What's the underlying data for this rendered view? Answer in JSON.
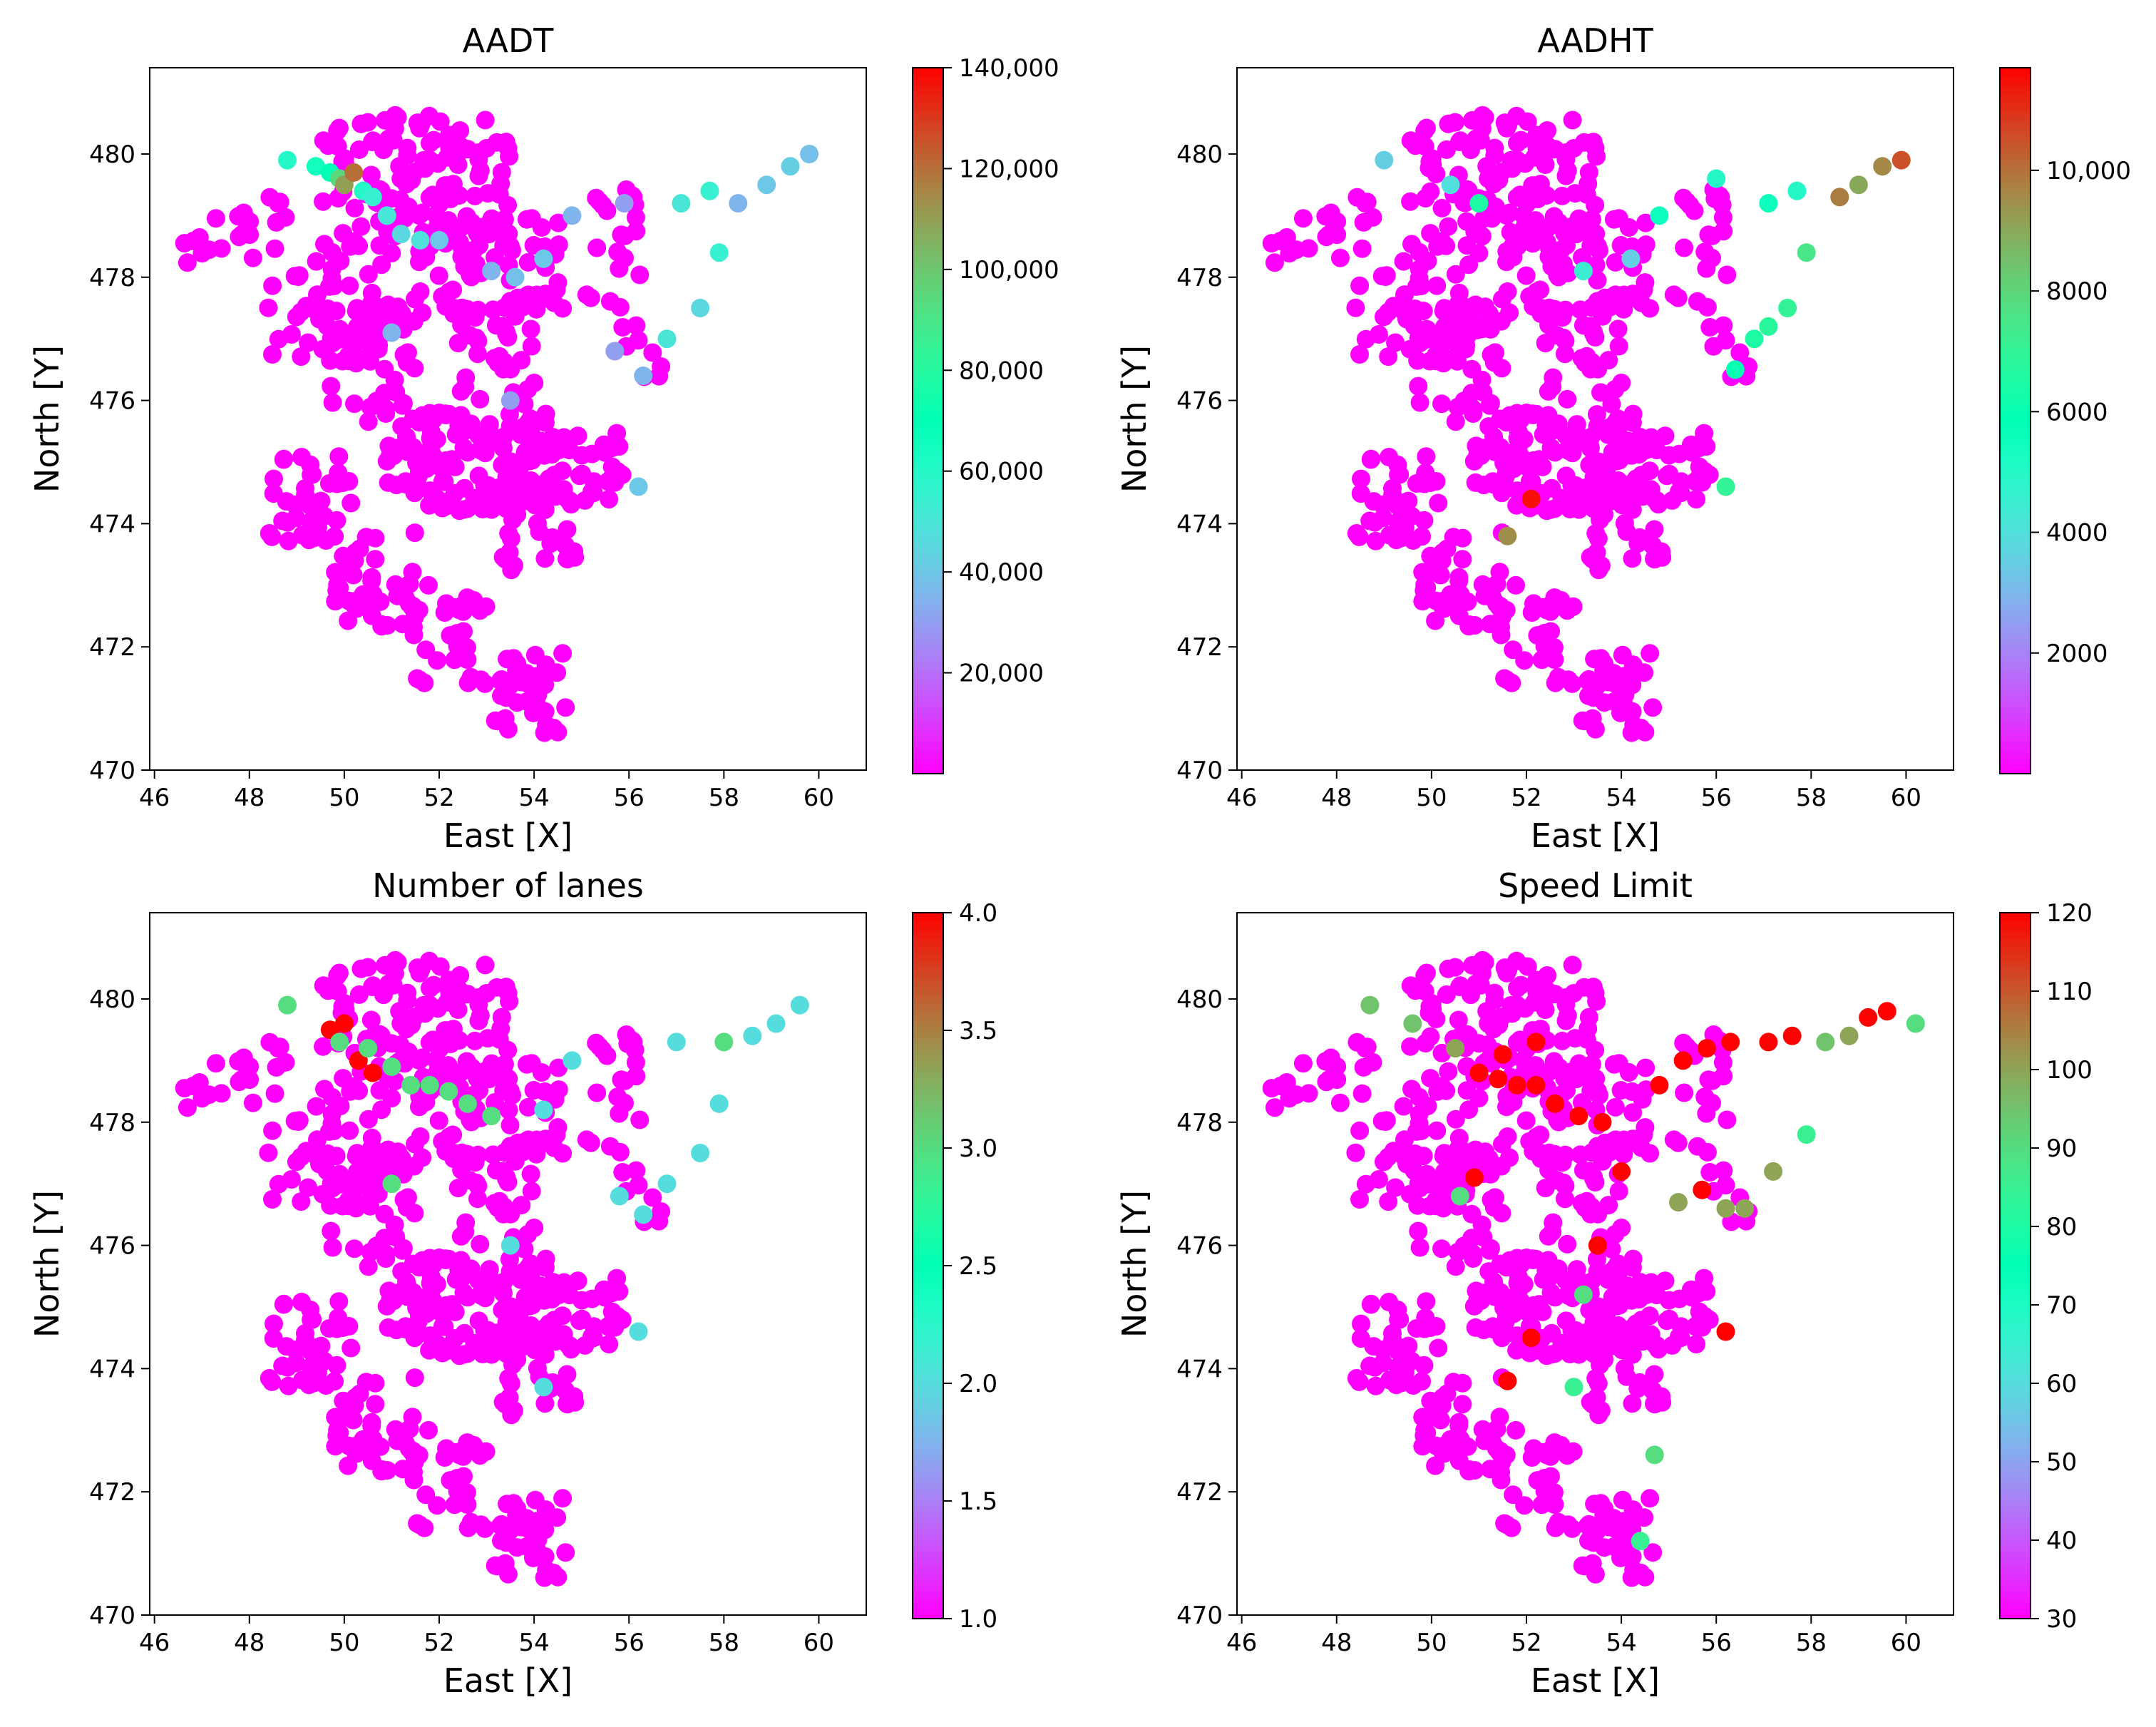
{
  "figure": {
    "note_colormap": "rainbow"
  },
  "chart_data": [
    {
      "type": "scatter",
      "title": "AADT",
      "xlabel": "East [X]",
      "ylabel": "North [Y]",
      "xlim": [
        45.9,
        61.0
      ],
      "ylim": [
        470.0,
        481.4
      ],
      "xticks": [
        46,
        48,
        50,
        52,
        54,
        56,
        58,
        60
      ],
      "yticks": [
        470,
        472,
        474,
        476,
        478,
        480
      ],
      "colorbar": {
        "label": "",
        "min": 0,
        "max": 140000,
        "ticks": [
          20000,
          40000,
          60000,
          80000,
          100000,
          120000,
          140000
        ],
        "tick_labels": [
          "20,000",
          "40,000",
          "60,000",
          "80,000",
          "100,000",
          "120,000",
          "140,000"
        ],
        "colormap": "rainbow"
      },
      "highlights": [
        {
          "x": 48.8,
          "y": 479.9,
          "value": 60000
        },
        {
          "x": 49.4,
          "y": 479.8,
          "value": 65000
        },
        {
          "x": 49.7,
          "y": 479.7,
          "value": 70000
        },
        {
          "x": 49.9,
          "y": 479.6,
          "value": 95000
        },
        {
          "x": 50.0,
          "y": 479.5,
          "value": 110000
        },
        {
          "x": 50.2,
          "y": 479.7,
          "value": 120000
        },
        {
          "x": 50.4,
          "y": 479.4,
          "value": 60000
        },
        {
          "x": 50.6,
          "y": 479.3,
          "value": 55000
        },
        {
          "x": 50.9,
          "y": 479.0,
          "value": 50000
        },
        {
          "x": 51.2,
          "y": 478.7,
          "value": 45000
        },
        {
          "x": 51.6,
          "y": 478.6,
          "value": 48000
        },
        {
          "x": 52.0,
          "y": 478.6,
          "value": 40000
        },
        {
          "x": 53.1,
          "y": 478.1,
          "value": 35000
        },
        {
          "x": 53.6,
          "y": 478.0,
          "value": 38000
        },
        {
          "x": 54.2,
          "y": 478.3,
          "value": 40000
        },
        {
          "x": 54.8,
          "y": 479.0,
          "value": 35000
        },
        {
          "x": 55.9,
          "y": 479.2,
          "value": 30000
        },
        {
          "x": 57.1,
          "y": 479.2,
          "value": 50000
        },
        {
          "x": 57.7,
          "y": 479.4,
          "value": 55000
        },
        {
          "x": 58.3,
          "y": 479.2,
          "value": 35000
        },
        {
          "x": 58.9,
          "y": 479.5,
          "value": 40000
        },
        {
          "x": 59.4,
          "y": 479.8,
          "value": 42000
        },
        {
          "x": 59.8,
          "y": 480.0,
          "value": 38000
        },
        {
          "x": 57.9,
          "y": 478.4,
          "value": 55000
        },
        {
          "x": 57.5,
          "y": 477.5,
          "value": 45000
        },
        {
          "x": 56.8,
          "y": 477.0,
          "value": 50000
        },
        {
          "x": 55.7,
          "y": 476.8,
          "value": 30000
        },
        {
          "x": 56.3,
          "y": 476.4,
          "value": 35000
        },
        {
          "x": 53.5,
          "y": 476.0,
          "value": 30000
        },
        {
          "x": 56.2,
          "y": 474.6,
          "value": 40000
        },
        {
          "x": 51.0,
          "y": 477.1,
          "value": 35000
        }
      ]
    },
    {
      "type": "scatter",
      "title": "AADHT",
      "xlabel": "East [X]",
      "ylabel": "North [Y]",
      "xlim": [
        45.9,
        61.0
      ],
      "ylim": [
        470.0,
        481.4
      ],
      "xticks": [
        46,
        48,
        50,
        52,
        54,
        56,
        58,
        60
      ],
      "yticks": [
        470,
        472,
        474,
        476,
        478,
        480
      ],
      "colorbar": {
        "label": "",
        "min": 0,
        "max": 11700,
        "ticks": [
          2000,
          4000,
          6000,
          8000,
          10000
        ],
        "tick_labels": [
          "2000",
          "4000",
          "6000",
          "8000",
          "10,000"
        ],
        "colormap": "rainbow"
      },
      "highlights": [
        {
          "x": 58.6,
          "y": 479.3,
          "value": 9800
        },
        {
          "x": 59.0,
          "y": 479.5,
          "value": 9000
        },
        {
          "x": 59.5,
          "y": 479.8,
          "value": 9600
        },
        {
          "x": 59.9,
          "y": 479.9,
          "value": 10500
        },
        {
          "x": 57.9,
          "y": 478.4,
          "value": 7500
        },
        {
          "x": 57.5,
          "y": 477.5,
          "value": 7000
        },
        {
          "x": 57.1,
          "y": 477.2,
          "value": 6800
        },
        {
          "x": 56.8,
          "y": 477.0,
          "value": 6500
        },
        {
          "x": 56.4,
          "y": 476.5,
          "value": 6000
        },
        {
          "x": 57.1,
          "y": 479.2,
          "value": 5500
        },
        {
          "x": 57.7,
          "y": 479.4,
          "value": 5000
        },
        {
          "x": 52.1,
          "y": 474.4,
          "value": 11500
        },
        {
          "x": 51.6,
          "y": 473.8,
          "value": 9500
        },
        {
          "x": 56.2,
          "y": 474.6,
          "value": 7000
        },
        {
          "x": 51.0,
          "y": 479.2,
          "value": 6500
        },
        {
          "x": 50.4,
          "y": 479.5,
          "value": 4000
        },
        {
          "x": 49.0,
          "y": 479.9,
          "value": 3500
        },
        {
          "x": 53.2,
          "y": 478.1,
          "value": 4500
        },
        {
          "x": 54.2,
          "y": 478.3,
          "value": 3500
        },
        {
          "x": 54.8,
          "y": 479.0,
          "value": 5500
        },
        {
          "x": 56.0,
          "y": 479.6,
          "value": 5000
        }
      ]
    },
    {
      "type": "scatter",
      "title": "Number of lanes",
      "xlabel": "East [X]",
      "ylabel": "North [Y]",
      "xlim": [
        45.9,
        61.0
      ],
      "ylim": [
        470.0,
        481.4
      ],
      "xticks": [
        46,
        48,
        50,
        52,
        54,
        56,
        58,
        60
      ],
      "yticks": [
        470,
        472,
        474,
        476,
        478,
        480
      ],
      "colorbar": {
        "label": "",
        "min": 1.0,
        "max": 4.0,
        "ticks": [
          1.0,
          1.5,
          2.0,
          2.5,
          3.0,
          3.5,
          4.0
        ],
        "tick_labels": [
          "1.0",
          "1.5",
          "2.0",
          "2.5",
          "3.0",
          "3.5",
          "4.0"
        ],
        "colormap": "rainbow"
      },
      "highlights": [
        {
          "x": 49.7,
          "y": 479.5,
          "value": 4.0
        },
        {
          "x": 50.0,
          "y": 479.6,
          "value": 4.0
        },
        {
          "x": 50.3,
          "y": 479.0,
          "value": 4.0
        },
        {
          "x": 50.6,
          "y": 478.8,
          "value": 4.0
        },
        {
          "x": 49.9,
          "y": 479.3,
          "value": 3.0
        },
        {
          "x": 50.5,
          "y": 479.2,
          "value": 3.0
        },
        {
          "x": 51.0,
          "y": 478.9,
          "value": 3.0
        },
        {
          "x": 51.4,
          "y": 478.6,
          "value": 3.0
        },
        {
          "x": 51.8,
          "y": 478.6,
          "value": 3.0
        },
        {
          "x": 52.2,
          "y": 478.5,
          "value": 3.0
        },
        {
          "x": 52.6,
          "y": 478.3,
          "value": 3.0
        },
        {
          "x": 53.1,
          "y": 478.1,
          "value": 3.0
        },
        {
          "x": 48.8,
          "y": 479.9,
          "value": 3.0
        },
        {
          "x": 51.0,
          "y": 477.0,
          "value": 3.0
        },
        {
          "x": 58.0,
          "y": 479.3,
          "value": 3.0
        },
        {
          "x": 58.6,
          "y": 479.4,
          "value": 2.0
        },
        {
          "x": 59.1,
          "y": 479.6,
          "value": 2.0
        },
        {
          "x": 59.6,
          "y": 479.9,
          "value": 2.0
        },
        {
          "x": 57.0,
          "y": 479.3,
          "value": 2.0
        },
        {
          "x": 57.9,
          "y": 478.3,
          "value": 2.0
        },
        {
          "x": 57.5,
          "y": 477.5,
          "value": 2.0
        },
        {
          "x": 56.8,
          "y": 477.0,
          "value": 2.0
        },
        {
          "x": 56.3,
          "y": 476.5,
          "value": 2.0
        },
        {
          "x": 55.8,
          "y": 476.8,
          "value": 2.0
        },
        {
          "x": 56.2,
          "y": 474.6,
          "value": 2.0
        },
        {
          "x": 54.2,
          "y": 478.2,
          "value": 2.0
        },
        {
          "x": 54.8,
          "y": 479.0,
          "value": 2.0
        },
        {
          "x": 53.5,
          "y": 476.0,
          "value": 2.0
        },
        {
          "x": 54.2,
          "y": 473.7,
          "value": 2.0
        }
      ]
    },
    {
      "type": "scatter",
      "title": "Speed Limit",
      "xlabel": "East [X]",
      "ylabel": "North [Y]",
      "xlim": [
        45.9,
        61.0
      ],
      "ylim": [
        470.0,
        481.4
      ],
      "xticks": [
        46,
        48,
        50,
        52,
        54,
        56,
        58,
        60
      ],
      "yticks": [
        470,
        472,
        474,
        476,
        478,
        480
      ],
      "colorbar": {
        "label": "",
        "min": 30,
        "max": 120,
        "ticks": [
          30,
          40,
          50,
          60,
          70,
          80,
          90,
          100,
          110,
          120
        ],
        "tick_labels": [
          "30",
          "40",
          "50",
          "60",
          "70",
          "80",
          "90",
          "100",
          "110",
          "120"
        ],
        "colormap": "rainbow"
      },
      "highlights": [
        {
          "x": 51.0,
          "y": 478.8,
          "value": 120
        },
        {
          "x": 51.4,
          "y": 478.7,
          "value": 120
        },
        {
          "x": 51.8,
          "y": 478.6,
          "value": 120
        },
        {
          "x": 52.2,
          "y": 478.6,
          "value": 120
        },
        {
          "x": 52.6,
          "y": 478.3,
          "value": 120
        },
        {
          "x": 53.1,
          "y": 478.1,
          "value": 120
        },
        {
          "x": 53.6,
          "y": 478.0,
          "value": 120
        },
        {
          "x": 51.5,
          "y": 479.1,
          "value": 120
        },
        {
          "x": 54.0,
          "y": 477.2,
          "value": 120
        },
        {
          "x": 54.8,
          "y": 478.6,
          "value": 120
        },
        {
          "x": 55.3,
          "y": 479.0,
          "value": 120
        },
        {
          "x": 55.8,
          "y": 479.2,
          "value": 120
        },
        {
          "x": 56.3,
          "y": 479.3,
          "value": 120
        },
        {
          "x": 57.1,
          "y": 479.3,
          "value": 120
        },
        {
          "x": 57.6,
          "y": 479.4,
          "value": 120
        },
        {
          "x": 59.2,
          "y": 479.7,
          "value": 120
        },
        {
          "x": 59.6,
          "y": 479.8,
          "value": 120
        },
        {
          "x": 55.7,
          "y": 476.9,
          "value": 120
        },
        {
          "x": 53.5,
          "y": 476.0,
          "value": 120
        },
        {
          "x": 56.2,
          "y": 474.6,
          "value": 120
        },
        {
          "x": 52.1,
          "y": 474.5,
          "value": 120
        },
        {
          "x": 51.6,
          "y": 473.8,
          "value": 120
        },
        {
          "x": 50.9,
          "y": 477.1,
          "value": 120
        },
        {
          "x": 52.2,
          "y": 479.3,
          "value": 120
        },
        {
          "x": 56.2,
          "y": 476.6,
          "value": 100
        },
        {
          "x": 56.6,
          "y": 476.6,
          "value": 100
        },
        {
          "x": 57.2,
          "y": 477.2,
          "value": 100
        },
        {
          "x": 58.3,
          "y": 479.3,
          "value": 95
        },
        {
          "x": 58.8,
          "y": 479.4,
          "value": 100
        },
        {
          "x": 60.2,
          "y": 479.6,
          "value": 90
        },
        {
          "x": 55.2,
          "y": 476.7,
          "value": 100
        },
        {
          "x": 53.2,
          "y": 475.2,
          "value": 90
        },
        {
          "x": 54.7,
          "y": 472.6,
          "value": 90
        },
        {
          "x": 48.7,
          "y": 479.9,
          "value": 95
        },
        {
          "x": 50.5,
          "y": 479.2,
          "value": 100
        },
        {
          "x": 49.6,
          "y": 479.6,
          "value": 95
        },
        {
          "x": 57.9,
          "y": 477.8,
          "value": 85
        },
        {
          "x": 54.4,
          "y": 471.2,
          "value": 85
        },
        {
          "x": 53.0,
          "y": 473.7,
          "value": 85
        },
        {
          "x": 50.6,
          "y": 476.8,
          "value": 90
        }
      ]
    }
  ]
}
